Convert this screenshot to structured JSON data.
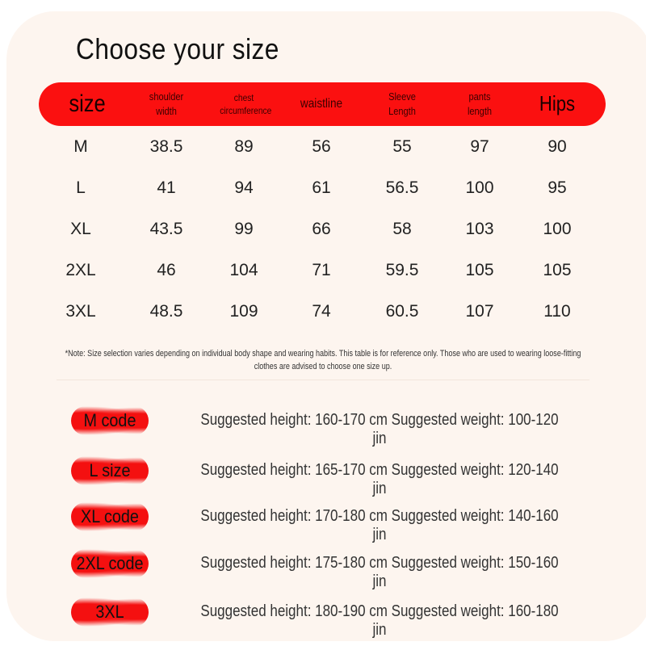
{
  "title": "Choose your size",
  "headers": [
    "size",
    "shoulder width",
    "chest circumference",
    "waistline",
    "Sleeve Length",
    "pants length",
    "Hips"
  ],
  "rows": [
    [
      "M",
      "38.5",
      "89",
      "56",
      "55",
      "97",
      "90"
    ],
    [
      "L",
      "41",
      "94",
      "61",
      "56.5",
      "100",
      "95"
    ],
    [
      "XL",
      "43.5",
      "99",
      "66",
      "58",
      "103",
      "100"
    ],
    [
      "2XL",
      "46",
      "104",
      "71",
      "59.5",
      "105",
      "105"
    ],
    [
      "3XL",
      "48.5",
      "109",
      "74",
      "60.5",
      "107",
      "110"
    ]
  ],
  "note": "*Note: Size selection varies depending on individual body shape and wearing habits. This table is for reference only. Those who are used to wearing loose-fitting clothes are advised to choose one size up.",
  "suggestions": [
    {
      "badge": "M code",
      "text": "Suggested height: 160-170 cm Suggested weight: 100-120 jin"
    },
    {
      "badge": "L size",
      "text": "Suggested height: 165-170 cm Suggested weight: 120-140 jin"
    },
    {
      "badge": "XL code",
      "text": "Suggested height: 170-180 cm Suggested weight: 140-160 jin"
    },
    {
      "badge": "2XL code",
      "text": "Suggested height: 175-180 cm Suggested weight: 150-160 jin"
    },
    {
      "badge": "3XL",
      "text": "Suggested height: 180-190 cm Suggested weight: 160-180 jin"
    }
  ],
  "colors": {
    "header": "#fb1010",
    "background": "#fdf5ef"
  }
}
